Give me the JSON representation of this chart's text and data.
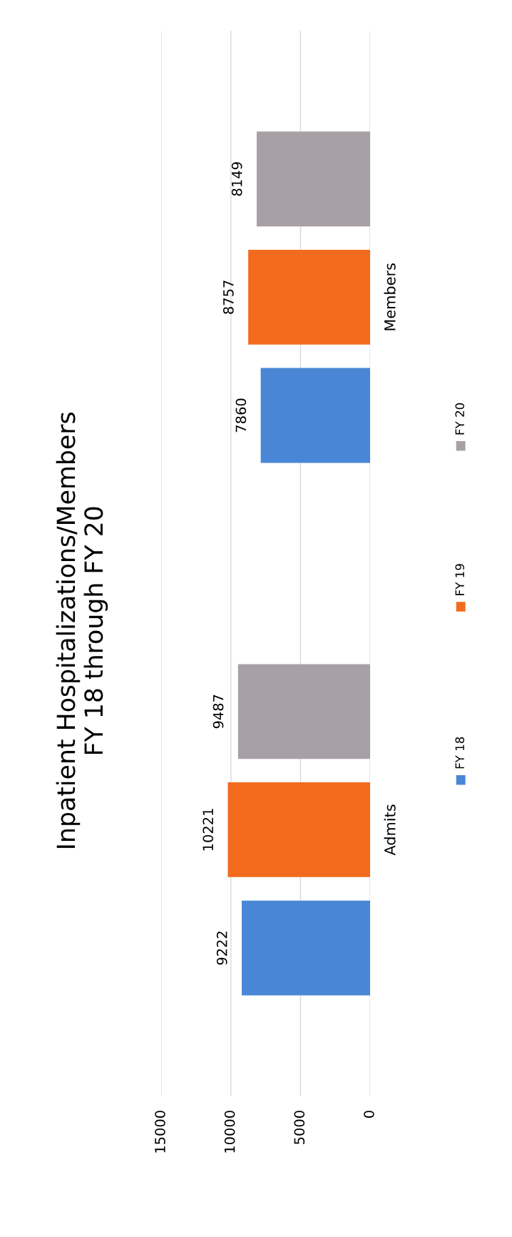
{
  "chart_data": {
    "type": "bar",
    "orientation": "horizontal",
    "title": "Inpatient Hospitalizations/Members\nFY 18 through FY 20",
    "categories": [
      "Members",
      "Admits"
    ],
    "series": [
      {
        "name": "FY 18",
        "color": "#4a86d6",
        "values": [
          7860,
          9222
        ]
      },
      {
        "name": "FY 19",
        "color": "#f26b1d",
        "values": [
          8757,
          10221
        ]
      },
      {
        "name": "FY 20",
        "color": "#a9a0a6",
        "values": [
          8149,
          9487
        ]
      }
    ],
    "xlim": [
      15000,
      0
    ],
    "xticks": [
      0,
      5000,
      10000,
      15000
    ],
    "grid": "x",
    "legend": "right",
    "data_labels": true
  }
}
